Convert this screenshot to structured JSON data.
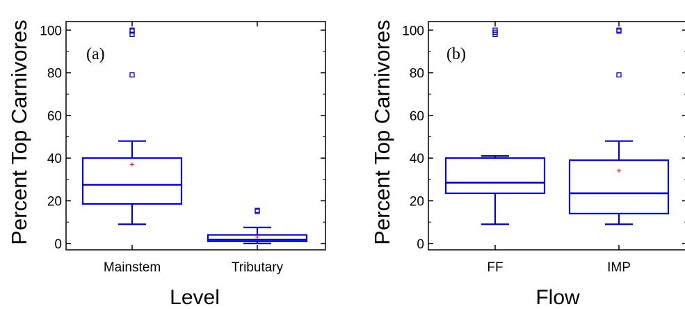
{
  "colors": {
    "box": "#0000dd",
    "mean": "#ff0000",
    "axis": "#000000"
  },
  "chart_data": [
    {
      "type": "boxplot",
      "panel_label": "(a)",
      "xlabel": "Level",
      "ylabel": "Percent Top Carnivores",
      "ylim": [
        -3,
        104
      ],
      "yticks": [
        0,
        20,
        40,
        60,
        80,
        100
      ],
      "categories": [
        "Mainstem",
        "Tributary"
      ],
      "boxes": [
        {
          "min": 9,
          "q1": 18.5,
          "median": 27.5,
          "q3": 40,
          "max": 48,
          "mean": 37,
          "outliers": [
            79,
            98,
            99.5,
            100
          ]
        },
        {
          "min": 0,
          "q1": 1,
          "median": 1.8,
          "q3": 4,
          "max": 7.5,
          "mean": 3,
          "outliers": [
            15,
            15.5
          ]
        }
      ]
    },
    {
      "type": "boxplot",
      "panel_label": "(b)",
      "xlabel": "Flow",
      "ylabel": "Percent Top Carnivores",
      "ylim": [
        -3,
        104
      ],
      "yticks": [
        0,
        20,
        40,
        60,
        80,
        100
      ],
      "categories": [
        "FF",
        "IMP"
      ],
      "boxes": [
        {
          "min": 9,
          "q1": 23.5,
          "median": 28.5,
          "q3": 40,
          "max": 41,
          "mean": null,
          "outliers": [
            98,
            99,
            100
          ]
        },
        {
          "min": 9,
          "q1": 14,
          "median": 23.5,
          "q3": 39,
          "max": 48,
          "mean": 34,
          "outliers": [
            79,
            99.5,
            100
          ]
        }
      ]
    }
  ]
}
